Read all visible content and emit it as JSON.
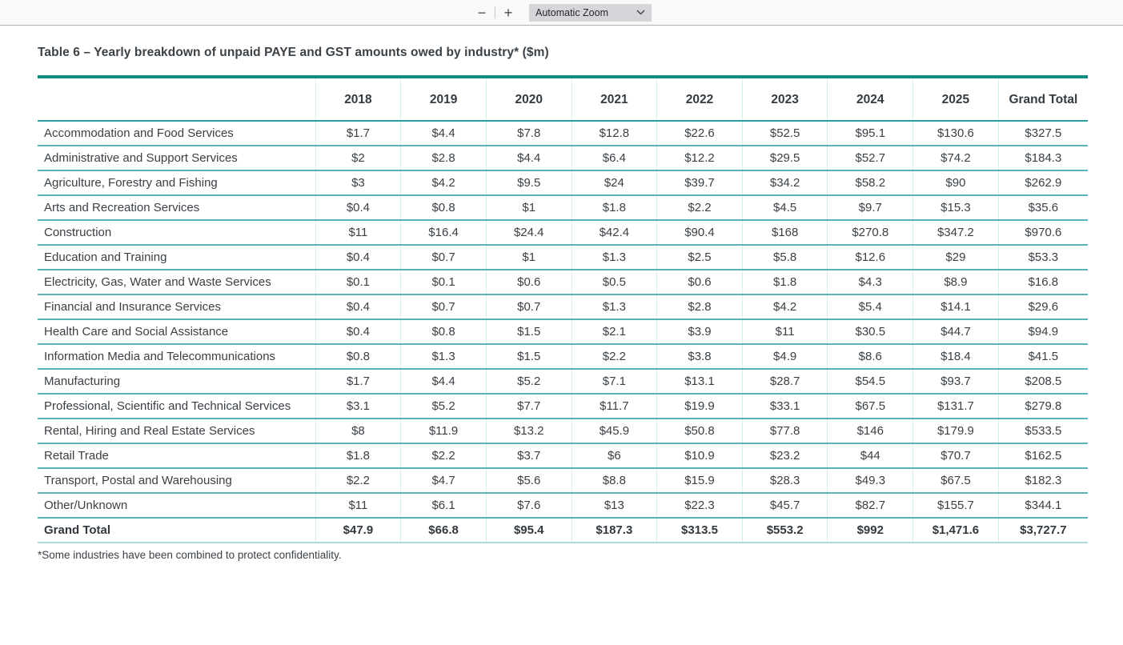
{
  "toolbar": {
    "zoom_out": "−",
    "zoom_in": "+",
    "zoom_level": "Automatic Zoom"
  },
  "document": {
    "title": "Table 6 – Yearly breakdown of unpaid PAYE and GST amounts owed by industry* ($m)",
    "footnote": "*Some industries have been combined to protect confidentiality."
  },
  "table": {
    "columns": [
      "2018",
      "2019",
      "2020",
      "2021",
      "2022",
      "2023",
      "2024",
      "2025",
      "Grand Total"
    ],
    "rows": [
      {
        "label": "Accommodation and Food Services",
        "values": [
          "$1.7",
          "$4.4",
          "$7.8",
          "$12.8",
          "$22.6",
          "$52.5",
          "$95.1",
          "$130.6",
          "$327.5"
        ]
      },
      {
        "label": "Administrative and Support Services",
        "values": [
          "$2",
          "$2.8",
          "$4.4",
          "$6.4",
          "$12.2",
          "$29.5",
          "$52.7",
          "$74.2",
          "$184.3"
        ]
      },
      {
        "label": "Agriculture, Forestry and Fishing",
        "values": [
          "$3",
          "$4.2",
          "$9.5",
          "$24",
          "$39.7",
          "$34.2",
          "$58.2",
          "$90",
          "$262.9"
        ]
      },
      {
        "label": "Arts and Recreation Services",
        "values": [
          "$0.4",
          "$0.8",
          "$1",
          "$1.8",
          "$2.2",
          "$4.5",
          "$9.7",
          "$15.3",
          "$35.6"
        ]
      },
      {
        "label": "Construction",
        "values": [
          "$11",
          "$16.4",
          "$24.4",
          "$42.4",
          "$90.4",
          "$168",
          "$270.8",
          "$347.2",
          "$970.6"
        ]
      },
      {
        "label": "Education and Training",
        "values": [
          "$0.4",
          "$0.7",
          "$1",
          "$1.3",
          "$2.5",
          "$5.8",
          "$12.6",
          "$29",
          "$53.3"
        ]
      },
      {
        "label": "Electricity, Gas, Water and Waste Services",
        "values": [
          "$0.1",
          "$0.1",
          "$0.6",
          "$0.5",
          "$0.6",
          "$1.8",
          "$4.3",
          "$8.9",
          "$16.8"
        ]
      },
      {
        "label": "Financial and Insurance Services",
        "values": [
          "$0.4",
          "$0.7",
          "$0.7",
          "$1.3",
          "$2.8",
          "$4.2",
          "$5.4",
          "$14.1",
          "$29.6"
        ]
      },
      {
        "label": "Health Care and Social Assistance",
        "values": [
          "$0.4",
          "$0.8",
          "$1.5",
          "$2.1",
          "$3.9",
          "$11",
          "$30.5",
          "$44.7",
          "$94.9"
        ]
      },
      {
        "label": "Information Media and Telecommunications",
        "values": [
          "$0.8",
          "$1.3",
          "$1.5",
          "$2.2",
          "$3.8",
          "$4.9",
          "$8.6",
          "$18.4",
          "$41.5"
        ]
      },
      {
        "label": "Manufacturing",
        "values": [
          "$1.7",
          "$4.4",
          "$5.2",
          "$7.1",
          "$13.1",
          "$28.7",
          "$54.5",
          "$93.7",
          "$208.5"
        ]
      },
      {
        "label": "Professional, Scientific and Technical Services",
        "values": [
          "$3.1",
          "$5.2",
          "$7.7",
          "$11.7",
          "$19.9",
          "$33.1",
          "$67.5",
          "$131.7",
          "$279.8"
        ]
      },
      {
        "label": "Rental, Hiring and Real Estate Services",
        "values": [
          "$8",
          "$11.9",
          "$13.2",
          "$45.9",
          "$50.8",
          "$77.8",
          "$146",
          "$179.9",
          "$533.5"
        ]
      },
      {
        "label": "Retail Trade",
        "values": [
          "$1.8",
          "$2.2",
          "$3.7",
          "$6",
          "$10.9",
          "$23.2",
          "$44",
          "$70.7",
          "$162.5"
        ]
      },
      {
        "label": "Transport, Postal and Warehousing",
        "values": [
          "$2.2",
          "$4.7",
          "$5.6",
          "$8.8",
          "$15.9",
          "$28.3",
          "$49.3",
          "$67.5",
          "$182.3"
        ]
      },
      {
        "label": "Other/Unknown",
        "values": [
          "$11",
          "$6.1",
          "$7.6",
          "$13",
          "$22.3",
          "$45.7",
          "$82.7",
          "$155.7",
          "$344.1"
        ]
      },
      {
        "label": "Grand Total",
        "values": [
          "$47.9",
          "$66.8",
          "$95.4",
          "$187.3",
          "$313.5",
          "$553.2",
          "$992",
          "$1,471.6",
          "$3,727.7"
        ],
        "is_total": true
      }
    ]
  },
  "colors": {
    "accent_teal_dark": "#0b8d88",
    "accent_teal_medium": "#2b9ea3",
    "accent_teal_row_line": "#58b2b7",
    "accent_teal_faint": "#d9efef",
    "total_bottom_line": "#a9dade",
    "toolbar_bg": "#f9f9fa",
    "dropdown_bg": "#d6d6da",
    "text_dark": "#3b4045"
  }
}
